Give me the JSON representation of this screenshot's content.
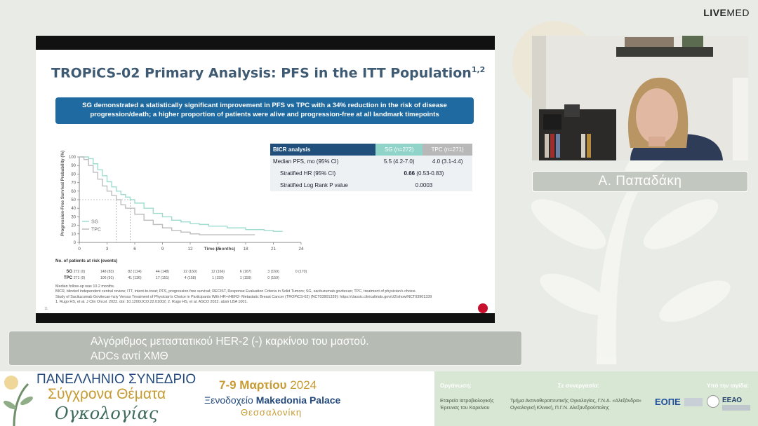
{
  "brand": {
    "logo_bold": "LIVE",
    "logo_light": "MED"
  },
  "slide": {
    "title": "TROPiCS-02 Primary Analysis: PFS in the ITT Population",
    "title_sup": "1,2",
    "callout": "SG demonstrated a statistically significant improvement in PFS vs TPC with a 34% reduction in the risk of disease progression/death; a higher proportion of patients were alive and progression-free at all landmark timepoints",
    "table": {
      "header": [
        "BICR analysis",
        "SG (n=272)",
        "TPC (n=271)"
      ],
      "rows": [
        {
          "label": "Median PFS, mo (95% CI)",
          "sg": "5.5 (4.2-7.0)",
          "tpc": "4.0 (3.1-4.4)"
        },
        {
          "label": "Stratified HR (95% CI)",
          "value_bold": "0.66",
          "value_rest": " (0.53-0.83)"
        },
        {
          "label": "Stratified Log Rank P value",
          "value": "0.0003"
        }
      ]
    },
    "risk": {
      "title": "No. of patients at risk (events)",
      "rows": [
        {
          "name": "SG",
          "values": [
            "272 (0)",
            "148 (83)",
            "82 (124)",
            "44 (148)",
            "22 (160)",
            "12 (166)",
            "6 (167)",
            "3 (169)",
            "0 (170)"
          ]
        },
        {
          "name": "TPC",
          "values": [
            "271 (0)",
            "106 (91)",
            "41 (136)",
            "17 (151)",
            "4 (158)",
            "1 (159)",
            "1 (159)",
            "0 (159)",
            ""
          ]
        }
      ]
    },
    "footer_lines": [
      "Median follow-up was 10.2 months.",
      "BICR, blinded independent central review; ITT, intent-to-treat; PFS, progression-free survival; RECIST, Response Evaluation Criteria in Solid Tumors; SG, sacituzumab govitecan; TPC, treatment of physician's choice.",
      "Study of Sacituzumab Govitecan-hziy Versus Treatment of Physician's Choice in Participants With HR+/HER2- Metastatic Breast Cancer (TROPiCS-02) (NCT03901339): https://classic.clinicaltrials.gov/ct2/show/NCT03901339",
      "1. Rugo HS, et al. J Clin Oncol. 2022. doi: 10.1200/JCO.22.01002; 2. Rugo HS, et al. ASCO 2022. abstr LBA 1001."
    ],
    "page_number": "11"
  },
  "chart_data": {
    "type": "line",
    "ylabel": "Progression-Free Survival Probability (%)",
    "xlabel": "Time (months)",
    "xlim": [
      0,
      24
    ],
    "ylim": [
      0,
      100
    ],
    "xticks": [
      0,
      3,
      6,
      9,
      12,
      15,
      18,
      21,
      24
    ],
    "yticks": [
      0,
      10,
      20,
      30,
      40,
      50,
      60,
      70,
      80,
      90,
      100
    ],
    "reference_y": 50,
    "medians": {
      "SG": 5.5,
      "TPC": 4.0
    },
    "legend_position": "lower-left",
    "series": [
      {
        "name": "SG",
        "color": "#9fdccf",
        "x": [
          0,
          1.0,
          1.5,
          2.0,
          2.5,
          3.0,
          3.5,
          4.0,
          4.5,
          5.0,
          5.5,
          6.0,
          7.0,
          8.0,
          9.0,
          10.0,
          11.0,
          12.0,
          13.0,
          14.0,
          16.0,
          18.0,
          20.0,
          21.0,
          22.0
        ],
        "y": [
          100,
          98,
          92,
          85,
          78,
          71,
          65,
          60,
          56,
          53,
          50,
          46,
          40,
          34,
          30,
          26,
          24,
          22,
          21,
          19,
          17,
          15,
          14,
          13,
          13
        ]
      },
      {
        "name": "TPC",
        "color": "#bdbdbd",
        "x": [
          0,
          0.5,
          1.0,
          1.5,
          2.0,
          2.5,
          3.0,
          3.5,
          4.0,
          4.5,
          5.0,
          6.0,
          7.0,
          8.0,
          9.0,
          10.0,
          11.0,
          12.0,
          13.0,
          15.0,
          17.0,
          19.0
        ],
        "y": [
          100,
          97,
          90,
          82,
          74,
          66,
          60,
          55,
          50,
          44,
          40,
          33,
          26,
          21,
          17,
          14,
          12,
          10,
          9,
          9,
          9,
          9
        ]
      }
    ]
  },
  "speaker": {
    "name": "Α. Παπαδάκη"
  },
  "topic": {
    "line1": "Αλγόριθμος μεταστατικού HER-2 (-) καρκίνου του μαστού.",
    "line2": "ADCs αντί ΧΜΘ"
  },
  "banner": {
    "line1": "ΠΑΝΕΛΛΗΝΙΟ ΣΥΝΕΔΡΙΟ",
    "line2": "Σύγχρονα Θέματα",
    "line3": "Ογκολογίας",
    "dates": "7-9 Μαρτίου",
    "year": "2024",
    "hotel_prefix": "Ξενοδοχείο",
    "hotel_name": "Makedonia Palace",
    "city": "Θεσσαλονίκη",
    "organizer_label": "Οργάνωση:",
    "organizer": "Εταιρεία Ιατροβιολογικής Έρευνας του Καρκίνου",
    "collab_label": "Σε συνεργασία:",
    "collab": "Τμήμα Ακτινοθεραπευτικής Ογκολογίας, Γ.Ν.Α. «Αλεξάνδρα» Ογκολογική Κλινική, Π.Γ.Ν. Αλεξανδρούπολης",
    "auspices_label": "Υπό την αιγίδα:",
    "logo1": "ΕΟΠΕ",
    "logo2": "ΕΕΑΟ"
  },
  "colors": {
    "slide_title": "#3f5b74",
    "callout_bg": "#1f6aa0",
    "banner_blue": "#244a7c",
    "banner_gold": "#c79b32",
    "banner_green": "#3d6a5b"
  }
}
